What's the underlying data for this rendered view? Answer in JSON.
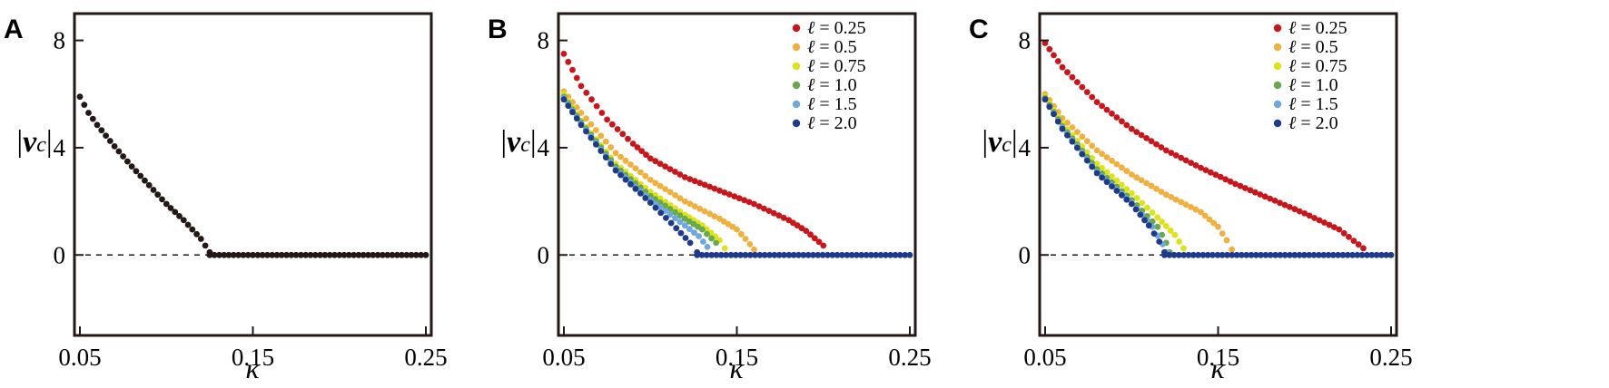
{
  "chart_data": [
    {
      "panel": "A",
      "type": "scatter",
      "xlabel": "κ",
      "ylabel": {
        "bar": "|",
        "v": "v",
        "sub": "c"
      },
      "xlim": [
        0.05,
        0.25
      ],
      "ylim": [
        -3,
        9
      ],
      "xticks": [
        "0.05",
        "0.15",
        "0.25"
      ],
      "xtick_values": [
        0.05,
        0.15,
        0.25
      ],
      "yticks": [
        "0",
        "4",
        "8"
      ],
      "ytick_values": [
        0,
        4,
        8
      ],
      "zero_line": "dashed",
      "legend": null,
      "series": [
        {
          "color": "#231815",
          "points": [
            [
              0.05,
              5.9
            ],
            [
              0.0525,
              5.6
            ],
            [
              0.055,
              5.3
            ],
            [
              0.06,
              4.85
            ],
            [
              0.07,
              4.05
            ],
            [
              0.08,
              3.3
            ],
            [
              0.09,
              2.6
            ],
            [
              0.1,
              1.9
            ],
            [
              0.11,
              1.3
            ],
            [
              0.12,
              0.6
            ],
            [
              0.125,
              0.1
            ],
            [
              0.125,
              0
            ],
            [
              0.25,
              0
            ]
          ]
        }
      ]
    },
    {
      "panel": "B",
      "type": "scatter",
      "xlabel": "κ",
      "ylabel": {
        "bar": "|",
        "v": "v",
        "sub": "c"
      },
      "xlim": [
        0.05,
        0.25
      ],
      "ylim": [
        -3,
        9
      ],
      "xticks": [
        "0.05",
        "0.15",
        "0.25"
      ],
      "xtick_values": [
        0.05,
        0.15,
        0.25
      ],
      "yticks": [
        "0",
        "4",
        "8"
      ],
      "ytick_values": [
        0,
        4,
        8
      ],
      "zero_line": "dashed",
      "legend": "top-right",
      "series": [
        {
          "name": "ℓ = 0.25",
          "legend_ell": "ℓ",
          "legend_rest": " = 0.25",
          "color": "#c8161d",
          "points": [
            [
              0.05,
              7.5
            ],
            [
              0.06,
              6.3
            ],
            [
              0.075,
              5.05
            ],
            [
              0.09,
              4.15
            ],
            [
              0.1,
              3.6
            ],
            [
              0.12,
              2.9
            ],
            [
              0.14,
              2.4
            ],
            [
              0.16,
              1.9
            ],
            [
              0.18,
              1.3
            ],
            [
              0.19,
              0.9
            ],
            [
              0.2,
              0.35
            ]
          ]
        },
        {
          "name": "ℓ = 0.5",
          "legend_ell": "ℓ",
          "legend_rest": " = 0.5",
          "color": "#f0b040",
          "points": [
            [
              0.05,
              6.1
            ],
            [
              0.06,
              5.3
            ],
            [
              0.08,
              3.8
            ],
            [
              0.1,
              2.8
            ],
            [
              0.12,
              2.0
            ],
            [
              0.14,
              1.35
            ],
            [
              0.15,
              0.95
            ],
            [
              0.155,
              0.6
            ],
            [
              0.16,
              0.2
            ]
          ]
        },
        {
          "name": "ℓ = 0.75",
          "legend_ell": "ℓ",
          "legend_rest": " = 0.75",
          "color": "#dde21b",
          "points": [
            [
              0.05,
              6.0
            ],
            [
              0.06,
              5.0
            ],
            [
              0.08,
              3.4
            ],
            [
              0.1,
              2.35
            ],
            [
              0.12,
              1.5
            ],
            [
              0.13,
              1.1
            ],
            [
              0.14,
              0.55
            ],
            [
              0.143,
              0.25
            ]
          ]
        },
        {
          "name": "ℓ = 1.0",
          "legend_ell": "ℓ",
          "legend_rest": " = 1.0",
          "color": "#6aa84f",
          "points": [
            [
              0.05,
              5.9
            ],
            [
              0.06,
              4.95
            ],
            [
              0.08,
              3.3
            ],
            [
              0.1,
              2.2
            ],
            [
              0.12,
              1.35
            ],
            [
              0.13,
              0.95
            ],
            [
              0.138,
              0.45
            ]
          ]
        },
        {
          "name": "ℓ = 1.5",
          "legend_ell": "ℓ",
          "legend_rest": " = 1.5",
          "color": "#6fa8dc",
          "points": [
            [
              0.05,
              5.85
            ],
            [
              0.06,
              4.9
            ],
            [
              0.08,
              3.2
            ],
            [
              0.1,
              2.05
            ],
            [
              0.12,
              1.1
            ],
            [
              0.128,
              0.7
            ],
            [
              0.133,
              0.3
            ]
          ]
        },
        {
          "name": "ℓ = 2.0",
          "legend_ell": "ℓ",
          "legend_rest": " = 2.0",
          "color": "#1f3a8a",
          "points": [
            [
              0.05,
              5.8
            ],
            [
              0.06,
              4.85
            ],
            [
              0.08,
              3.15
            ],
            [
              0.1,
              1.95
            ],
            [
              0.115,
              1.0
            ],
            [
              0.123,
              0.45
            ],
            [
              0.127,
              0.1
            ],
            [
              0.127,
              0
            ],
            [
              0.25,
              0
            ]
          ]
        }
      ]
    },
    {
      "panel": "C",
      "type": "scatter",
      "xlabel": "κ",
      "ylabel": {
        "bar": "|",
        "v": "v",
        "sub": "c"
      },
      "xlim": [
        0.05,
        0.25
      ],
      "ylim": [
        -3,
        9
      ],
      "xticks": [
        "0.05",
        "0.15",
        "0.25"
      ],
      "xtick_values": [
        0.05,
        0.15,
        0.25
      ],
      "yticks": [
        "0",
        "4",
        "8"
      ],
      "ytick_values": [
        0,
        4,
        8
      ],
      "zero_line": "dashed",
      "legend": "top-right",
      "series": [
        {
          "name": "ℓ = 0.25",
          "legend_ell": "ℓ",
          "legend_rest": " = 0.25",
          "color": "#c8161d",
          "points": [
            [
              0.05,
              7.9
            ],
            [
              0.06,
              7.0
            ],
            [
              0.08,
              5.7
            ],
            [
              0.1,
              4.7
            ],
            [
              0.12,
              3.9
            ],
            [
              0.14,
              3.25
            ],
            [
              0.16,
              2.65
            ],
            [
              0.18,
              2.1
            ],
            [
              0.2,
              1.55
            ],
            [
              0.22,
              0.95
            ],
            [
              0.234,
              0.25
            ]
          ]
        },
        {
          "name": "ℓ = 0.5",
          "legend_ell": "ℓ",
          "legend_rest": " = 0.5",
          "color": "#f0b040",
          "points": [
            [
              0.05,
              6.0
            ],
            [
              0.06,
              5.1
            ],
            [
              0.08,
              3.9
            ],
            [
              0.1,
              3.0
            ],
            [
              0.12,
              2.25
            ],
            [
              0.14,
              1.6
            ],
            [
              0.15,
              1.05
            ],
            [
              0.155,
              0.55
            ],
            [
              0.158,
              0.2
            ]
          ]
        },
        {
          "name": "ℓ = 0.75",
          "legend_ell": "ℓ",
          "legend_rest": " = 0.75",
          "color": "#dde21b",
          "points": [
            [
              0.05,
              5.9
            ],
            [
              0.06,
              4.9
            ],
            [
              0.08,
              3.4
            ],
            [
              0.1,
              2.3
            ],
            [
              0.115,
              1.4
            ],
            [
              0.125,
              0.75
            ],
            [
              0.13,
              0.25
            ]
          ]
        },
        {
          "name": "ℓ = 1.0",
          "legend_ell": "ℓ",
          "legend_rest": " = 1.0",
          "color": "#6aa84f",
          "points": [
            [
              0.05,
              5.85
            ],
            [
              0.06,
              4.8
            ],
            [
              0.08,
              3.2
            ],
            [
              0.1,
              2.05
            ],
            [
              0.115,
              1.05
            ],
            [
              0.12,
              0.45
            ],
            [
              0.122,
              0.1
            ]
          ]
        },
        {
          "name": "ℓ = 1.5",
          "legend_ell": "ℓ",
          "legend_rest": " = 1.5",
          "color": "#6fa8dc",
          "points": [
            [
              0.05,
              5.8
            ],
            [
              0.06,
              4.75
            ],
            [
              0.08,
              3.1
            ],
            [
              0.1,
              1.95
            ],
            [
              0.112,
              1.05
            ],
            [
              0.118,
              0.4
            ],
            [
              0.12,
              0.1
            ]
          ]
        },
        {
          "name": "ℓ = 2.0",
          "legend_ell": "ℓ",
          "legend_rest": " = 2.0",
          "color": "#1f3a8a",
          "points": [
            [
              0.05,
              5.8
            ],
            [
              0.06,
              4.7
            ],
            [
              0.08,
              3.05
            ],
            [
              0.1,
              1.9
            ],
            [
              0.11,
              1.1
            ],
            [
              0.116,
              0.5
            ],
            [
              0.119,
              0.1
            ],
            [
              0.119,
              0
            ],
            [
              0.25,
              0
            ]
          ]
        }
      ]
    }
  ]
}
